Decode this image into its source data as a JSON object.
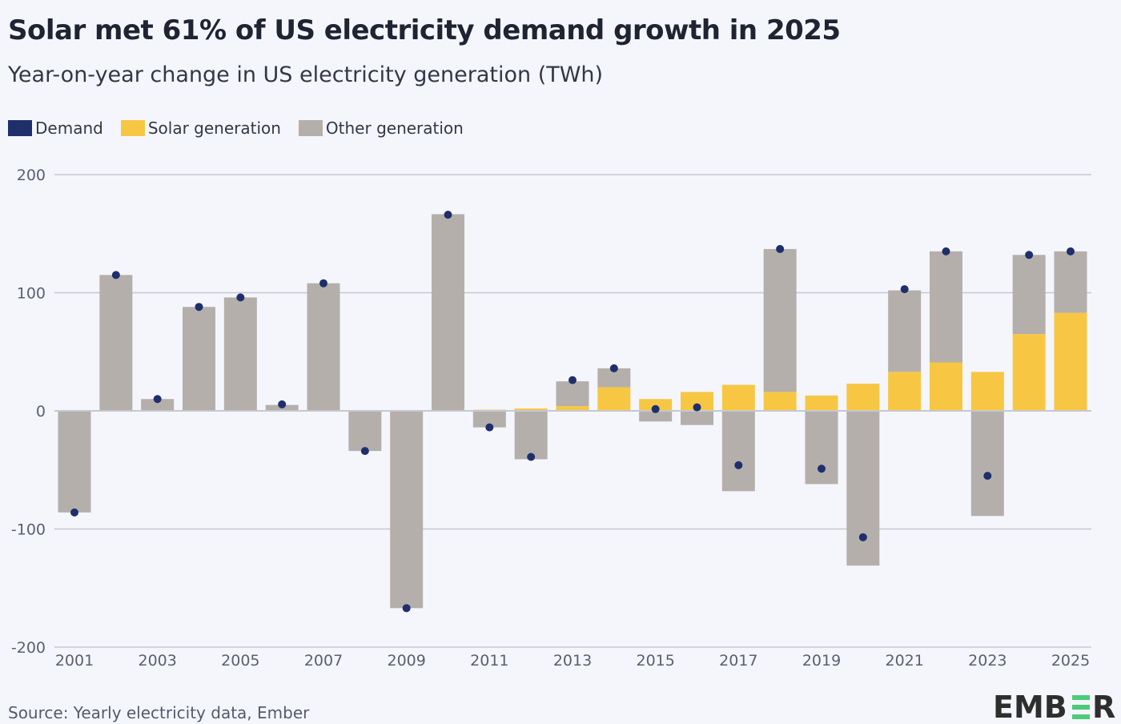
{
  "chart_data": {
    "type": "bar",
    "stacked": true,
    "title": "Solar met 61% of US electricity demand growth in 2025",
    "subtitle": "Year-on-year change in US electricity generation (TWh)",
    "categories": [
      2001,
      2002,
      2003,
      2004,
      2005,
      2006,
      2007,
      2008,
      2009,
      2010,
      2011,
      2012,
      2013,
      2014,
      2015,
      2016,
      2017,
      2018,
      2019,
      2020,
      2021,
      2022,
      2023,
      2024,
      2025
    ],
    "x_tick_labels": [
      "2001",
      "2003",
      "2005",
      "2007",
      "2009",
      "2011",
      "2013",
      "2015",
      "2017",
      "2019",
      "2021",
      "2023",
      "2025"
    ],
    "y_ticks": [
      200,
      100,
      0,
      -100,
      -200
    ],
    "y_tick_labels": [
      "200",
      "100",
      "0",
      "-100",
      "-200"
    ],
    "ylim": [
      -200,
      200
    ],
    "grid": true,
    "legend_position": "top-left",
    "series": [
      {
        "name": "Demand",
        "kind": "dot",
        "color": "#1e2f6b",
        "values": [
          -86,
          115,
          10,
          88,
          96,
          5.5,
          108,
          -34,
          -167,
          166,
          -14,
          -39,
          26,
          36,
          1.5,
          3,
          -46,
          137,
          -49,
          -107,
          103,
          135,
          -55,
          132,
          135
        ]
      },
      {
        "name": "Solar generation",
        "kind": "bar",
        "color": "#f7c744",
        "values": [
          0,
          0,
          0,
          0,
          0,
          0,
          0,
          0,
          0,
          0.5,
          1,
          2,
          4,
          20,
          10,
          16,
          22,
          16,
          13,
          23,
          33,
          41,
          33,
          65,
          83
        ]
      },
      {
        "name": "Other generation",
        "kind": "bar",
        "color": "#b5afac",
        "values": [
          -86,
          115,
          10,
          88,
          96,
          5,
          108,
          -34,
          -167,
          166,
          -14,
          -41,
          21,
          16,
          -9,
          -12,
          -68,
          121,
          -62,
          -131,
          69,
          94,
          -89,
          67,
          52
        ]
      }
    ]
  },
  "source": "Source: Yearly electricity data, Ember",
  "logo": "EMBER"
}
